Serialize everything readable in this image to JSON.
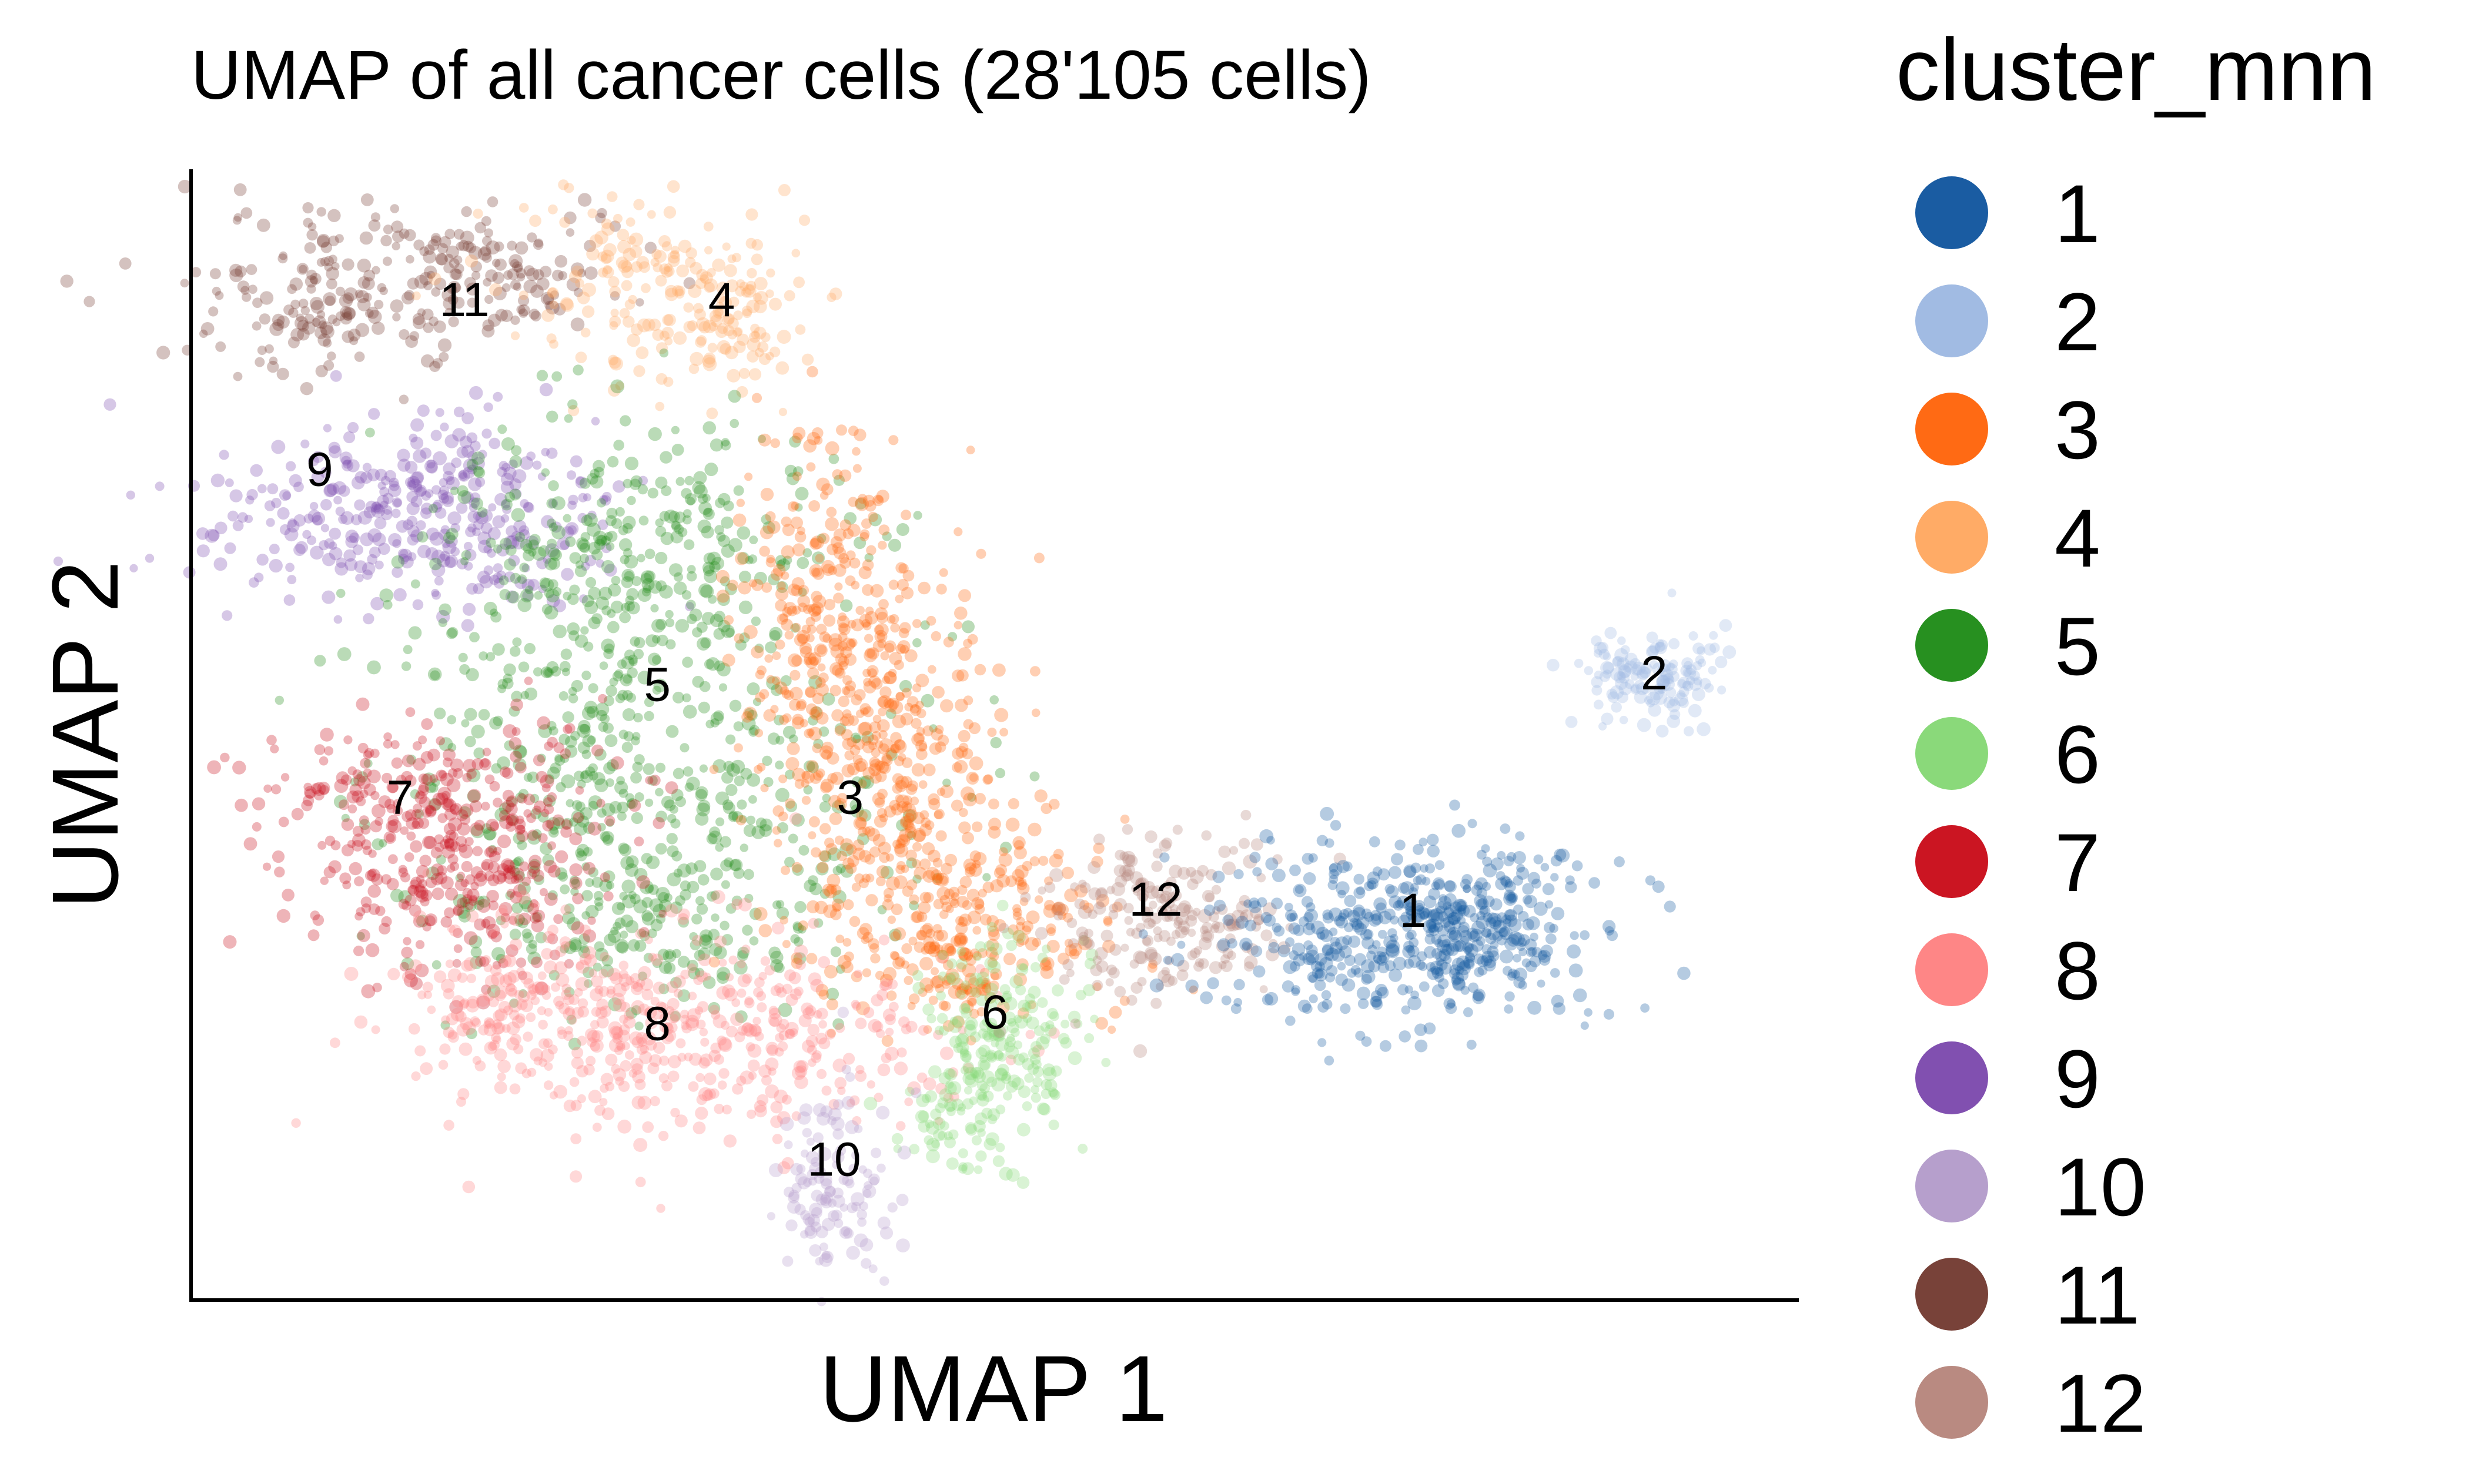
{
  "chart_data": {
    "type": "scatter",
    "title": "UMAP of all cancer cells (28'105 cells)",
    "xlabel": "UMAP 1",
    "ylabel": "UMAP 2",
    "x_ticks": "none",
    "y_ticks": "none",
    "grid": false,
    "legend_position": "right",
    "legend": {
      "title": "cluster_mnn",
      "entries": [
        {
          "label": "1",
          "color": "#1a5ca2"
        },
        {
          "label": "2",
          "color": "#a1bbe3"
        },
        {
          "label": "3",
          "color": "#ff6a14"
        },
        {
          "label": "4",
          "color": "#ffab66"
        },
        {
          "label": "5",
          "color": "#279020"
        },
        {
          "label": "6",
          "color": "#8ad97a"
        },
        {
          "label": "7",
          "color": "#cb1522"
        },
        {
          "label": "8",
          "color": "#fe8686"
        },
        {
          "label": "9",
          "color": "#8150b0"
        },
        {
          "label": "10",
          "color": "#b69fcc"
        },
        {
          "label": "11",
          "color": "#784239"
        },
        {
          "label": "12",
          "color": "#b98a81"
        }
      ]
    },
    "clusters": [
      {
        "id": "1",
        "color": "#1a5ca2",
        "centroid": [
          0.76,
          0.33
        ]
      },
      {
        "id": "2",
        "color": "#a1bbe3",
        "centroid": [
          0.91,
          0.54
        ]
      },
      {
        "id": "3",
        "color": "#ff6a14",
        "centroid": [
          0.41,
          0.43
        ]
      },
      {
        "id": "4",
        "color": "#ffab66",
        "centroid": [
          0.33,
          0.87
        ]
      },
      {
        "id": "5",
        "color": "#279020",
        "centroid": [
          0.29,
          0.53
        ]
      },
      {
        "id": "6",
        "color": "#8ad97a",
        "centroid": [
          0.5,
          0.24
        ]
      },
      {
        "id": "7",
        "color": "#cb1522",
        "centroid": [
          0.13,
          0.43
        ]
      },
      {
        "id": "8",
        "color": "#fe8686",
        "centroid": [
          0.29,
          0.23
        ]
      },
      {
        "id": "9",
        "color": "#8150b0",
        "centroid": [
          0.08,
          0.72
        ]
      },
      {
        "id": "10",
        "color": "#b69fcc",
        "centroid": [
          0.4,
          0.11
        ]
      },
      {
        "id": "11",
        "color": "#784239",
        "centroid": [
          0.17,
          0.87
        ]
      },
      {
        "id": "12",
        "color": "#b98a81",
        "centroid": [
          0.6,
          0.34
        ]
      }
    ]
  }
}
